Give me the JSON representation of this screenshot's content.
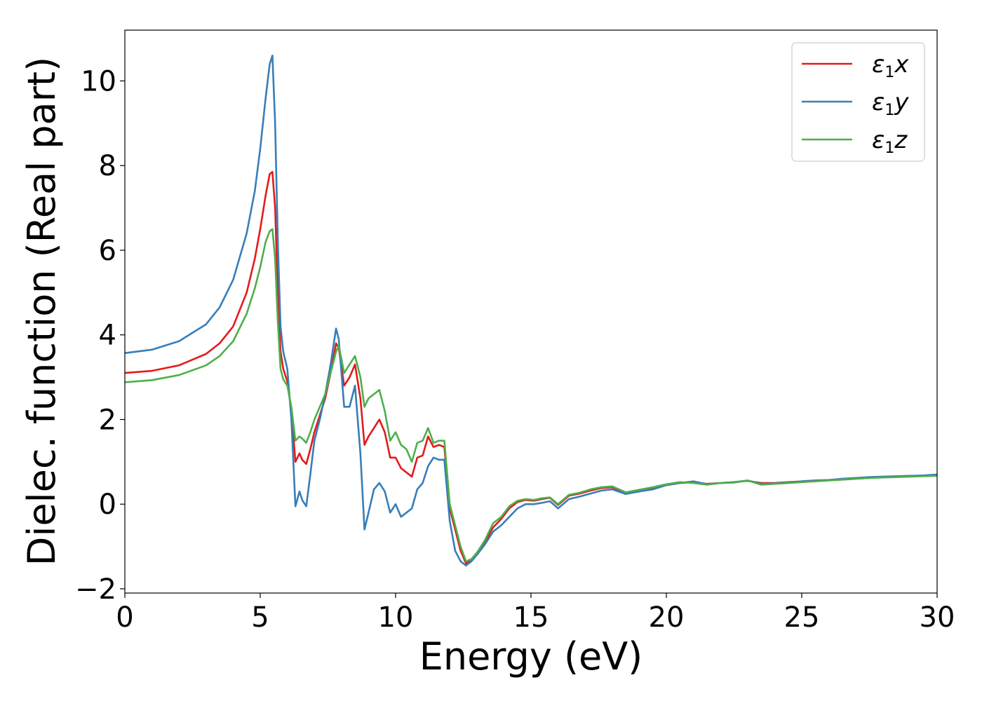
{
  "chart_data": {
    "type": "line",
    "xlabel": "Energy (eV)",
    "ylabel": "Dielec. function (Real part)",
    "xlim": [
      0,
      30
    ],
    "ylim": [
      -2.1,
      11.2
    ],
    "xticks": [
      0,
      5,
      10,
      15,
      20,
      25,
      30
    ],
    "xtick_labels": [
      "0",
      "5",
      "10",
      "15",
      "20",
      "25",
      "30"
    ],
    "yticks": [
      -2,
      0,
      2,
      4,
      6,
      8,
      10
    ],
    "ytick_labels": [
      "−2",
      "0",
      "2",
      "4",
      "6",
      "8",
      "10"
    ],
    "grid": false,
    "legend_position": "top-right",
    "series": [
      {
        "name": "ε₁x",
        "legend": {
          "base": "ε",
          "sub": "1",
          "suffix": "x"
        },
        "color": "#e41a1c",
        "x": [
          0,
          1,
          2,
          3,
          3.5,
          4,
          4.5,
          4.8,
          5.0,
          5.2,
          5.35,
          5.45,
          5.55,
          5.65,
          5.75,
          5.85,
          6.0,
          6.15,
          6.3,
          6.45,
          6.55,
          6.7,
          6.85,
          7.0,
          7.2,
          7.4,
          7.6,
          7.8,
          7.9,
          8.1,
          8.3,
          8.5,
          8.7,
          8.85,
          9.0,
          9.2,
          9.4,
          9.6,
          9.8,
          10.0,
          10.2,
          10.4,
          10.6,
          10.8,
          11.0,
          11.2,
          11.4,
          11.6,
          11.8,
          12.0,
          12.2,
          12.4,
          12.6,
          12.8,
          13.0,
          13.3,
          13.6,
          13.9,
          14.2,
          14.5,
          14.8,
          15.1,
          15.4,
          15.7,
          16.0,
          16.4,
          16.8,
          17.2,
          17.6,
          18.0,
          18.5,
          19.0,
          19.5,
          20.0,
          20.5,
          21.0,
          21.5,
          22.0,
          22.5,
          23.0,
          23.5,
          24.0,
          24.5,
          25.0,
          25.5,
          26.0,
          26.5,
          27.0,
          27.5,
          28.0,
          28.5,
          29.0,
          29.5,
          30.0
        ],
        "y": [
          3.1,
          3.15,
          3.28,
          3.55,
          3.8,
          4.2,
          5.0,
          5.8,
          6.5,
          7.3,
          7.8,
          7.85,
          7.0,
          5.0,
          3.6,
          3.2,
          2.9,
          2.2,
          1.0,
          1.2,
          1.05,
          0.95,
          1.3,
          1.7,
          2.1,
          2.5,
          3.1,
          3.8,
          3.7,
          2.8,
          3.0,
          3.3,
          2.5,
          1.4,
          1.6,
          1.8,
          2.0,
          1.7,
          1.1,
          1.1,
          0.85,
          0.75,
          0.65,
          1.1,
          1.15,
          1.6,
          1.35,
          1.4,
          1.35,
          -0.1,
          -0.6,
          -1.1,
          -1.4,
          -1.3,
          -1.15,
          -0.9,
          -0.55,
          -0.35,
          -0.1,
          0.05,
          0.1,
          0.08,
          0.12,
          0.15,
          -0.02,
          0.2,
          0.25,
          0.32,
          0.38,
          0.4,
          0.26,
          0.32,
          0.38,
          0.45,
          0.5,
          0.52,
          0.48,
          0.5,
          0.52,
          0.55,
          0.5,
          0.5,
          0.52,
          0.54,
          0.56,
          0.57,
          0.58,
          0.6,
          0.62,
          0.64,
          0.65,
          0.66,
          0.67,
          0.68
        ]
      },
      {
        "name": "ε₁y",
        "legend": {
          "base": "ε",
          "sub": "1",
          "suffix": "y"
        },
        "color": "#377eb8",
        "x": [
          0,
          1,
          2,
          3,
          3.5,
          4,
          4.5,
          4.8,
          5.0,
          5.2,
          5.35,
          5.45,
          5.55,
          5.65,
          5.75,
          5.85,
          6.0,
          6.15,
          6.3,
          6.45,
          6.55,
          6.7,
          6.85,
          7.0,
          7.2,
          7.4,
          7.6,
          7.8,
          7.9,
          8.1,
          8.3,
          8.5,
          8.7,
          8.85,
          9.0,
          9.2,
          9.4,
          9.6,
          9.8,
          10.0,
          10.2,
          10.4,
          10.6,
          10.8,
          11.0,
          11.2,
          11.4,
          11.6,
          11.8,
          12.0,
          12.2,
          12.4,
          12.6,
          12.8,
          13.0,
          13.3,
          13.6,
          13.9,
          14.2,
          14.5,
          14.8,
          15.1,
          15.4,
          15.7,
          16.0,
          16.4,
          16.8,
          17.2,
          17.6,
          18.0,
          18.5,
          19.0,
          19.5,
          20.0,
          20.5,
          21.0,
          21.5,
          22.0,
          22.5,
          23.0,
          23.5,
          24.0,
          24.5,
          25.0,
          25.5,
          26.0,
          26.5,
          27.0,
          27.5,
          28.0,
          28.5,
          29.0,
          29.5,
          30.0
        ],
        "y": [
          3.57,
          3.65,
          3.85,
          4.25,
          4.65,
          5.3,
          6.4,
          7.4,
          8.4,
          9.6,
          10.4,
          10.6,
          9.0,
          6.2,
          4.2,
          3.6,
          3.2,
          2.0,
          -0.05,
          0.3,
          0.1,
          -0.05,
          0.7,
          1.5,
          2.0,
          2.6,
          3.3,
          4.15,
          3.9,
          2.3,
          2.3,
          2.8,
          1.2,
          -0.6,
          -0.2,
          0.35,
          0.5,
          0.3,
          -0.2,
          0.0,
          -0.3,
          -0.2,
          -0.1,
          0.35,
          0.5,
          0.9,
          1.1,
          1.05,
          1.05,
          -0.4,
          -1.1,
          -1.35,
          -1.45,
          -1.35,
          -1.2,
          -0.95,
          -0.65,
          -0.5,
          -0.3,
          -0.1,
          0.0,
          0.0,
          0.03,
          0.07,
          -0.1,
          0.12,
          0.18,
          0.25,
          0.32,
          0.35,
          0.24,
          0.3,
          0.35,
          0.45,
          0.5,
          0.54,
          0.47,
          0.5,
          0.52,
          0.56,
          0.48,
          0.49,
          0.51,
          0.54,
          0.55,
          0.57,
          0.6,
          0.62,
          0.64,
          0.65,
          0.66,
          0.67,
          0.68,
          0.7
        ]
      },
      {
        "name": "ε₁z",
        "legend": {
          "base": "ε",
          "sub": "1",
          "suffix": "z"
        },
        "color": "#4daf4a",
        "x": [
          0,
          1,
          2,
          3,
          3.5,
          4,
          4.5,
          4.8,
          5.0,
          5.2,
          5.35,
          5.45,
          5.55,
          5.65,
          5.75,
          5.85,
          6.0,
          6.15,
          6.3,
          6.45,
          6.55,
          6.7,
          6.85,
          7.0,
          7.2,
          7.4,
          7.6,
          7.8,
          7.9,
          8.1,
          8.3,
          8.5,
          8.7,
          8.85,
          9.0,
          9.2,
          9.4,
          9.6,
          9.8,
          10.0,
          10.2,
          10.4,
          10.6,
          10.8,
          11.0,
          11.2,
          11.4,
          11.6,
          11.8,
          12.0,
          12.2,
          12.4,
          12.6,
          12.8,
          13.0,
          13.3,
          13.6,
          13.9,
          14.2,
          14.5,
          14.8,
          15.1,
          15.4,
          15.7,
          16.0,
          16.4,
          16.8,
          17.2,
          17.6,
          18.0,
          18.5,
          19.0,
          19.5,
          20.0,
          20.5,
          21.0,
          21.5,
          22.0,
          22.5,
          23.0,
          23.5,
          24.0,
          24.5,
          25.0,
          25.5,
          26.0,
          26.5,
          27.0,
          27.5,
          28.0,
          28.5,
          29.0,
          29.5,
          30.0
        ],
        "y": [
          2.88,
          2.93,
          3.05,
          3.28,
          3.5,
          3.85,
          4.5,
          5.1,
          5.6,
          6.2,
          6.45,
          6.5,
          5.8,
          4.3,
          3.2,
          2.95,
          2.8,
          2.3,
          1.5,
          1.6,
          1.55,
          1.45,
          1.7,
          2.0,
          2.3,
          2.6,
          3.1,
          3.6,
          3.75,
          3.1,
          3.3,
          3.5,
          3.0,
          2.3,
          2.5,
          2.6,
          2.7,
          2.2,
          1.5,
          1.7,
          1.4,
          1.3,
          1.0,
          1.45,
          1.5,
          1.8,
          1.45,
          1.5,
          1.5,
          0.0,
          -0.5,
          -1.0,
          -1.35,
          -1.3,
          -1.15,
          -0.85,
          -0.45,
          -0.3,
          -0.05,
          0.08,
          0.12,
          0.1,
          0.14,
          0.16,
          0.0,
          0.22,
          0.27,
          0.35,
          0.4,
          0.42,
          0.28,
          0.34,
          0.4,
          0.47,
          0.52,
          0.5,
          0.46,
          0.5,
          0.51,
          0.56,
          0.46,
          0.48,
          0.5,
          0.52,
          0.54,
          0.56,
          0.58,
          0.6,
          0.62,
          0.63,
          0.64,
          0.65,
          0.66,
          0.67
        ]
      }
    ]
  }
}
